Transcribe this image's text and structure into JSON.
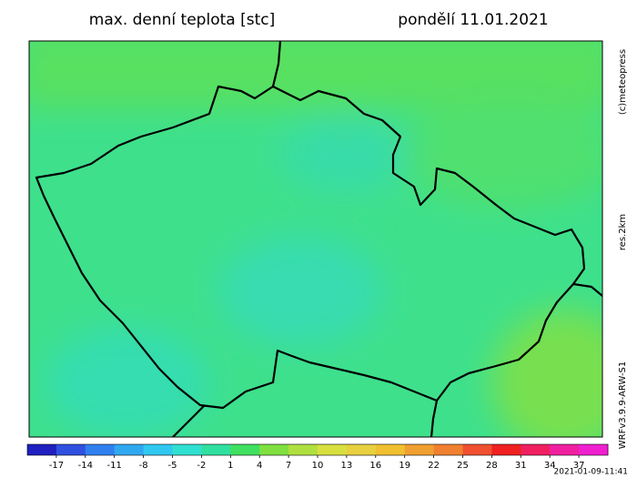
{
  "header": {
    "title": "max. denní teplota [stc]",
    "date": "pondělí 11.01.2021"
  },
  "side_labels": [
    "(c)meteopress",
    "res.2km",
    "WRFv3.9.9-ARW-S1"
  ],
  "timestamp": "2021-01-09-11:41",
  "colorbar": {
    "range": [
      -20,
      40
    ],
    "ticks": [
      -17,
      -14,
      -11,
      -8,
      -5,
      -2,
      1,
      4,
      7,
      10,
      13,
      16,
      19,
      22,
      25,
      28,
      31,
      34,
      37
    ],
    "colors": [
      "#2020c0",
      "#3050e0",
      "#3080f0",
      "#30a8f0",
      "#30c8f0",
      "#30e0d0",
      "#30e0a0",
      "#40e060",
      "#80e040",
      "#b0e040",
      "#d8e040",
      "#e8d040",
      "#f0c030",
      "#f0a030",
      "#f08030",
      "#f05030",
      "#f02020",
      "#f02060",
      "#f020a0",
      "#f020d0"
    ]
  }
}
